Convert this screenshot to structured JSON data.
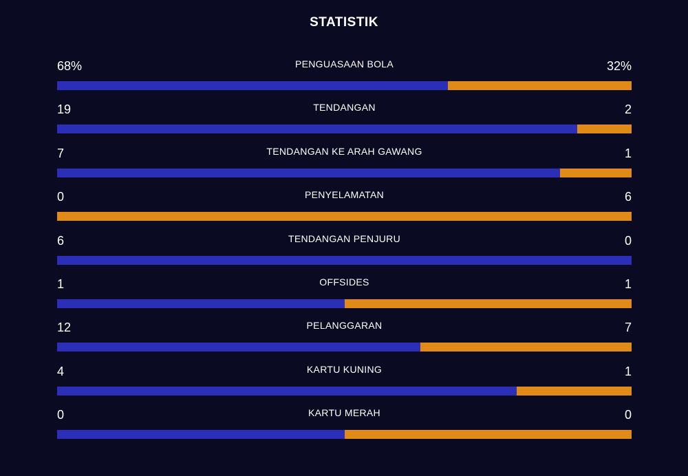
{
  "title": "STATISTIK",
  "colors": {
    "background": "#0a0b22",
    "home": "#2b2fb8",
    "away": "#e08a18",
    "text": "#ffffff"
  },
  "stats": [
    {
      "label": "PENGUASAAN BOLA",
      "home_display": "68%",
      "away_display": "32%",
      "home_share": 0.68
    },
    {
      "label": "TENDANGAN",
      "home_display": "19",
      "away_display": "2",
      "home_share": 0.905
    },
    {
      "label": "TENDANGAN KE ARAH GAWANG",
      "home_display": "7",
      "away_display": "1",
      "home_share": 0.875
    },
    {
      "label": "PENYELAMATAN",
      "home_display": "0",
      "away_display": "6",
      "home_share": 0.0
    },
    {
      "label": "TENDANGAN PENJURU",
      "home_display": "6",
      "away_display": "0",
      "home_share": 1.0
    },
    {
      "label": "OFFSIDES",
      "home_display": "1",
      "away_display": "1",
      "home_share": 0.5
    },
    {
      "label": "PELANGGARAN",
      "home_display": "12",
      "away_display": "7",
      "home_share": 0.632
    },
    {
      "label": "KARTU KUNING",
      "home_display": "4",
      "away_display": "1",
      "home_share": 0.8
    },
    {
      "label": "KARTU MERAH",
      "home_display": "0",
      "away_display": "0",
      "home_share": 0.5
    }
  ]
}
